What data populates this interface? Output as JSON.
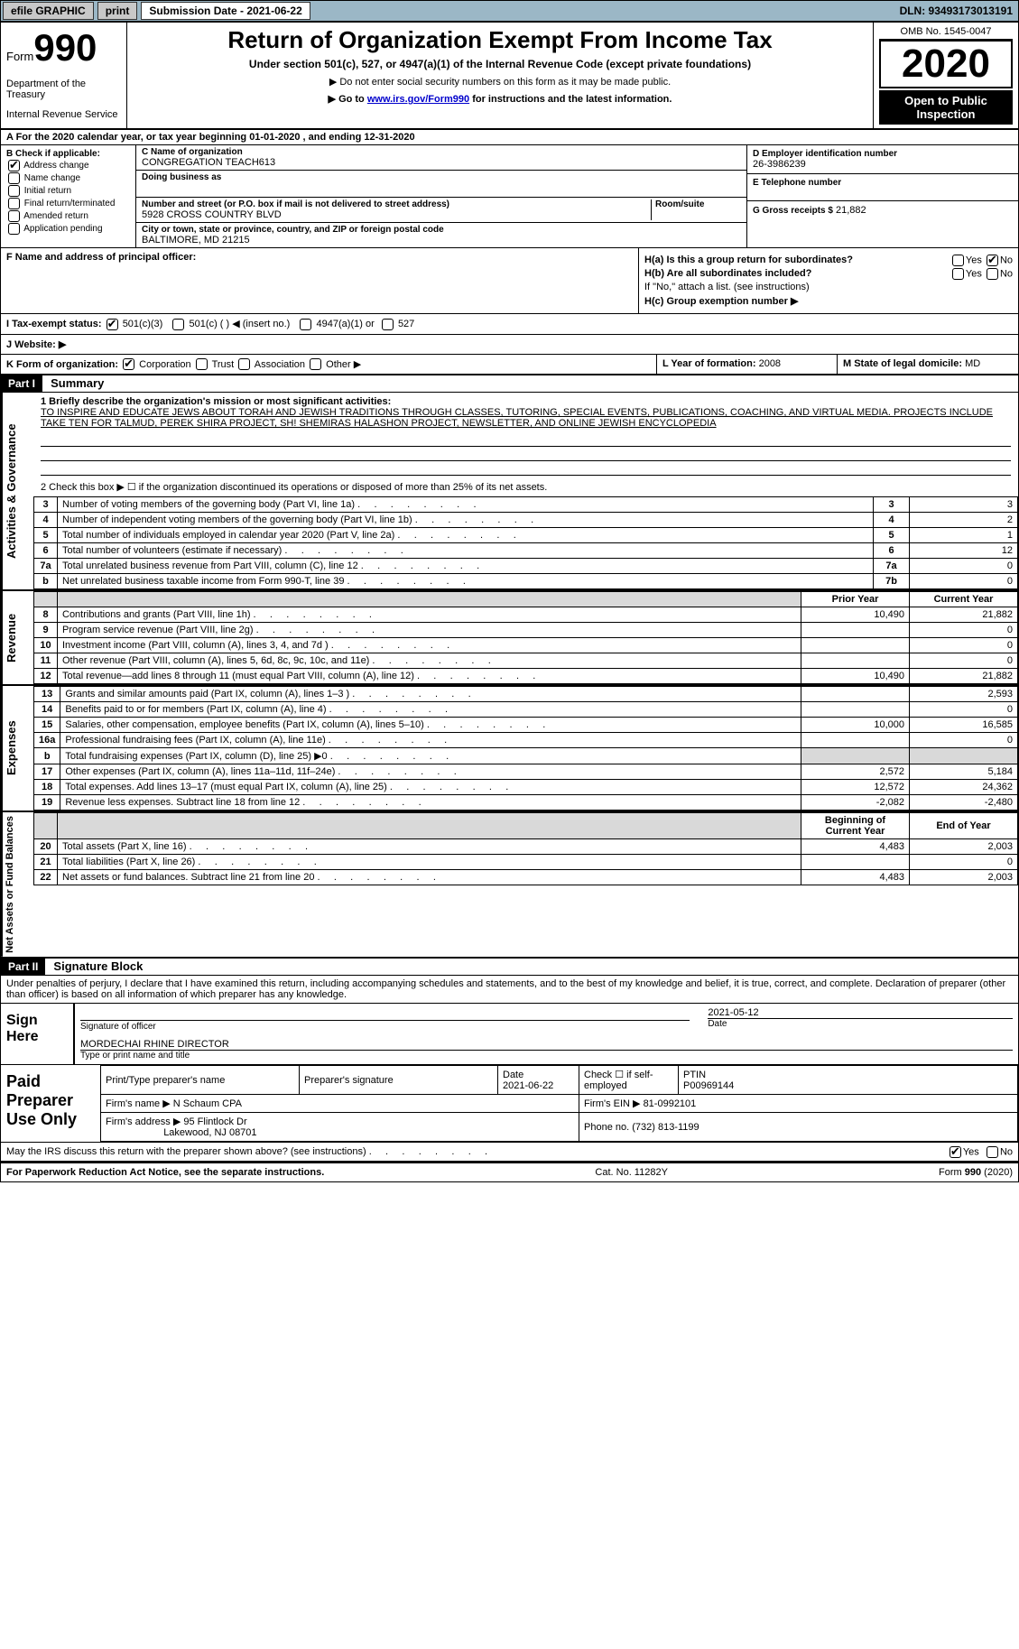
{
  "topbar": {
    "efile": "efile GRAPHIC",
    "print": "print",
    "submission": "Submission Date - 2021-06-22",
    "dln": "DLN: 93493173013191"
  },
  "header": {
    "form_label": "Form",
    "form_no": "990",
    "dept1": "Department of the Treasury",
    "dept2": "Internal Revenue Service",
    "title": "Return of Organization Exempt From Income Tax",
    "subtitle": "Under section 501(c), 527, or 4947(a)(1) of the Internal Revenue Code (except private foundations)",
    "bullet1": "▶ Do not enter social security numbers on this form as it may be made public.",
    "bullet2_pre": "▶ Go to ",
    "bullet2_link": "www.irs.gov/Form990",
    "bullet2_post": " for instructions and the latest information.",
    "omb": "OMB No. 1545-0047",
    "year": "2020",
    "open": "Open to Public Inspection"
  },
  "rowA": "A For the 2020 calendar year, or tax year beginning 01-01-2020   , and ending 12-31-2020",
  "boxB": {
    "title": "B Check if applicable:",
    "items": [
      {
        "label": "Address change",
        "checked": true
      },
      {
        "label": "Name change",
        "checked": false
      },
      {
        "label": "Initial return",
        "checked": false
      },
      {
        "label": "Final return/terminated",
        "checked": false
      },
      {
        "label": "Amended return",
        "checked": false
      },
      {
        "label": "Application pending",
        "checked": false
      }
    ]
  },
  "boxC": {
    "name_lbl": "C Name of organization",
    "name": "CONGREGATION TEACH613",
    "dba_lbl": "Doing business as",
    "addr_lbl": "Number and street (or P.O. box if mail is not delivered to street address)",
    "room_lbl": "Room/suite",
    "addr": "5928 CROSS COUNTRY BLVD",
    "city_lbl": "City or town, state or province, country, and ZIP or foreign postal code",
    "city": "BALTIMORE, MD  21215"
  },
  "boxDE": {
    "d_lbl": "D Employer identification number",
    "d_val": "26-3986239",
    "e_lbl": "E Telephone number",
    "g_lbl": "G Gross receipts $",
    "g_val": "21,882"
  },
  "rowF": {
    "f_lbl": "F Name and address of principal officer:",
    "ha_lbl": "H(a)  Is this a group return for subordinates?",
    "hb_lbl": "H(b)  Are all subordinates included?",
    "hb_note": "If \"No,\" attach a list. (see instructions)",
    "hc_lbl": "H(c)  Group exemption number ▶",
    "yes": "Yes",
    "no": "No"
  },
  "taxexempt": {
    "lbl": "I    Tax-exempt status:",
    "c3": "501(c)(3)",
    "cins": "501(c) (  ) ◀ (insert no.)",
    "a1": "4947(a)(1) or",
    "s527": "527"
  },
  "website_lbl": "J   Website: ▶",
  "rowK": {
    "k_lbl": "K Form of organization:",
    "corp": "Corporation",
    "trust": "Trust",
    "assoc": "Association",
    "other": "Other ▶",
    "l_lbl": "L Year of formation:",
    "l_val": "2008",
    "m_lbl": "M State of legal domicile:",
    "m_val": "MD"
  },
  "part1": {
    "hdr": "Part I",
    "title": "Summary",
    "side1": "Activities & Governance",
    "side2": "Revenue",
    "side3": "Expenses",
    "side4": "Net Assets or Fund Balances",
    "l1_lbl": "1  Briefly describe the organization's mission or most significant activities:",
    "l1_txt": "TO INSPIRE AND EDUCATE JEWS ABOUT TORAH AND JEWISH TRADITIONS THROUGH CLASSES, TUTORING, SPECIAL EVENTS, PUBLICATIONS, COACHING, AND VIRTUAL MEDIA. PROJECTS INCLUDE TAKE TEN FOR TALMUD, PEREK SHIRA PROJECT, SH! SHEMIRAS HALASHON PROJECT, NEWSLETTER, AND ONLINE JEWISH ENCYCLOPEDIA",
    "l2": "2   Check this box ▶ ☐  if the organization discontinued its operations or disposed of more than 25% of its net assets.",
    "rows_gov": [
      {
        "n": "3",
        "t": "Number of voting members of the governing body (Part VI, line 1a)",
        "box": "3",
        "v": "3"
      },
      {
        "n": "4",
        "t": "Number of independent voting members of the governing body (Part VI, line 1b)",
        "box": "4",
        "v": "2"
      },
      {
        "n": "5",
        "t": "Total number of individuals employed in calendar year 2020 (Part V, line 2a)",
        "box": "5",
        "v": "1"
      },
      {
        "n": "6",
        "t": "Total number of volunteers (estimate if necessary)",
        "box": "6",
        "v": "12"
      },
      {
        "n": "7a",
        "t": "Total unrelated business revenue from Part VIII, column (C), line 12",
        "box": "7a",
        "v": "0"
      },
      {
        "n": "b",
        "t": "Net unrelated business taxable income from Form 990-T, line 39",
        "box": "7b",
        "v": "0"
      }
    ],
    "col_prior": "Prior Year",
    "col_curr": "Current Year",
    "rows_rev": [
      {
        "n": "8",
        "t": "Contributions and grants (Part VIII, line 1h)",
        "p": "10,490",
        "c": "21,882"
      },
      {
        "n": "9",
        "t": "Program service revenue (Part VIII, line 2g)",
        "p": "",
        "c": "0"
      },
      {
        "n": "10",
        "t": "Investment income (Part VIII, column (A), lines 3, 4, and 7d )",
        "p": "",
        "c": "0"
      },
      {
        "n": "11",
        "t": "Other revenue (Part VIII, column (A), lines 5, 6d, 8c, 9c, 10c, and 11e)",
        "p": "",
        "c": "0"
      },
      {
        "n": "12",
        "t": "Total revenue—add lines 8 through 11 (must equal Part VIII, column (A), line 12)",
        "p": "10,490",
        "c": "21,882"
      }
    ],
    "rows_exp": [
      {
        "n": "13",
        "t": "Grants and similar amounts paid (Part IX, column (A), lines 1–3 )",
        "p": "",
        "c": "2,593"
      },
      {
        "n": "14",
        "t": "Benefits paid to or for members (Part IX, column (A), line 4)",
        "p": "",
        "c": "0"
      },
      {
        "n": "15",
        "t": "Salaries, other compensation, employee benefits (Part IX, column (A), lines 5–10)",
        "p": "10,000",
        "c": "16,585"
      },
      {
        "n": "16a",
        "t": "Professional fundraising fees (Part IX, column (A), line 11e)",
        "p": "",
        "c": "0"
      },
      {
        "n": "b",
        "t": "Total fundraising expenses (Part IX, column (D), line 25) ▶0",
        "p": "grey",
        "c": "grey"
      },
      {
        "n": "17",
        "t": "Other expenses (Part IX, column (A), lines 11a–11d, 11f–24e)",
        "p": "2,572",
        "c": "5,184"
      },
      {
        "n": "18",
        "t": "Total expenses. Add lines 13–17 (must equal Part IX, column (A), line 25)",
        "p": "12,572",
        "c": "24,362"
      },
      {
        "n": "19",
        "t": "Revenue less expenses. Subtract line 18 from line 12",
        "p": "-2,082",
        "c": "-2,480"
      }
    ],
    "col_boy": "Beginning of Current Year",
    "col_eoy": "End of Year",
    "rows_net": [
      {
        "n": "20",
        "t": "Total assets (Part X, line 16)",
        "p": "4,483",
        "c": "2,003"
      },
      {
        "n": "21",
        "t": "Total liabilities (Part X, line 26)",
        "p": "",
        "c": "0"
      },
      {
        "n": "22",
        "t": "Net assets or fund balances. Subtract line 21 from line 20",
        "p": "4,483",
        "c": "2,003"
      }
    ]
  },
  "part2": {
    "hdr": "Part II",
    "title": "Signature Block",
    "decl": "Under penalties of perjury, I declare that I have examined this return, including accompanying schedules and statements, and to the best of my knowledge and belief, it is true, correct, and complete. Declaration of preparer (other than officer) is based on all information of which preparer has any knowledge.",
    "sign_here": "Sign Here",
    "sig_off": "Signature of officer",
    "sig_date": "Date",
    "sig_date_val": "2021-05-12",
    "sig_name": "MORDECHAI RHINE  DIRECTOR",
    "sig_name_lbl": "Type or print name and title",
    "paid": "Paid Preparer Use Only",
    "p_name_lbl": "Print/Type preparer's name",
    "p_sig_lbl": "Preparer's signature",
    "p_date_lbl": "Date",
    "p_date": "2021-06-22",
    "p_self": "Check ☐ if self-employed",
    "p_ptin_lbl": "PTIN",
    "p_ptin": "P00969144",
    "firm_name_lbl": "Firm's name   ▶",
    "firm_name": "N Schaum CPA",
    "firm_ein_lbl": "Firm's EIN ▶",
    "firm_ein": "81-0992101",
    "firm_addr_lbl": "Firm's address ▶",
    "firm_addr": "95 Flintlock Dr",
    "firm_city": "Lakewood, NJ  08701",
    "firm_phone_lbl": "Phone no.",
    "firm_phone": "(732) 813-1199",
    "discuss": "May the IRS discuss this return with the preparer shown above? (see instructions)",
    "yes": "Yes",
    "no": "No"
  },
  "footer": {
    "pra": "For Paperwork Reduction Act Notice, see the separate instructions.",
    "cat": "Cat. No. 11282Y",
    "form": "Form 990 (2020)"
  }
}
